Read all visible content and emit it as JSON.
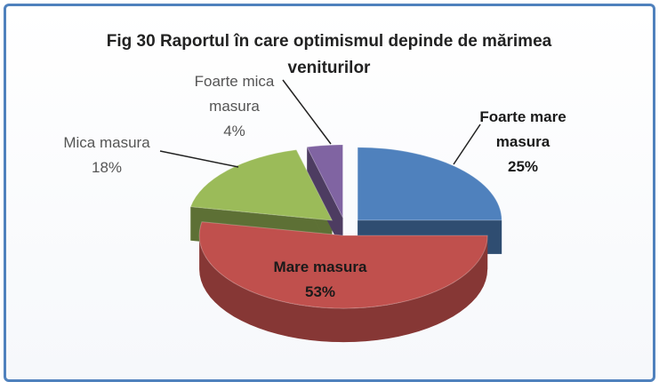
{
  "chart_data": {
    "type": "pie",
    "title": "Fig 30 Raportul în care optimismul depinde de mărimea veniturilor",
    "categories": [
      "Foarte mare masura",
      "Mare masura",
      "Mica masura",
      "Foarte mica masura"
    ],
    "values": [
      25,
      53,
      18,
      4
    ],
    "value_labels": [
      "25%",
      "53%",
      "18%",
      "4%"
    ],
    "colors": [
      "#4f81bd",
      "#c0504d",
      "#9bbb59",
      "#8064a2"
    ]
  }
}
